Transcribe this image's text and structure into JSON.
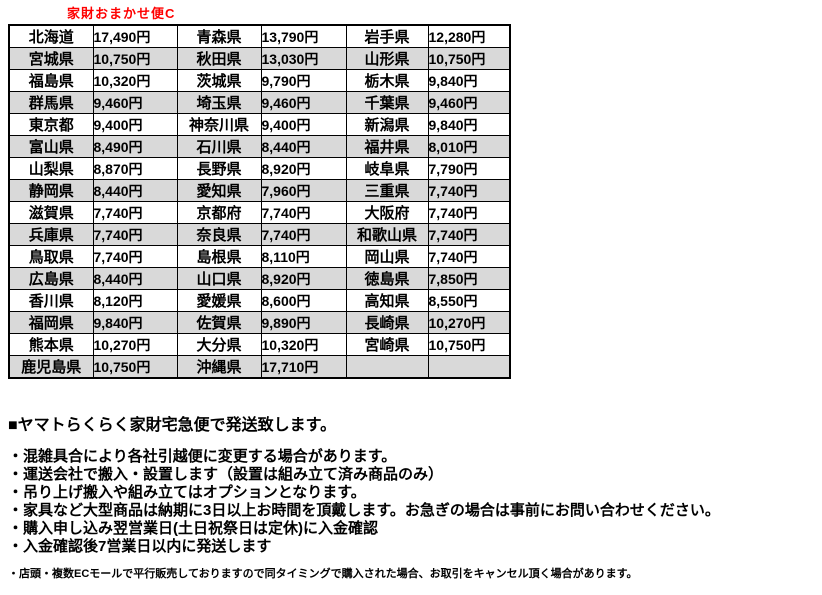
{
  "title": "家財おまかせ便C",
  "colors": {
    "title": "#ff0000",
    "row_alt": "#d9d9d9",
    "border": "#000000"
  },
  "table": {
    "rows": [
      [
        "北海道",
        "17,490円",
        "青森県",
        "13,790円",
        "岩手県",
        "12,280円"
      ],
      [
        "宮城県",
        "10,750円",
        "秋田県",
        "13,030円",
        "山形県",
        "10,750円"
      ],
      [
        "福島県",
        "10,320円",
        "茨城県",
        "9,790円",
        "栃木県",
        "9,840円"
      ],
      [
        "群馬県",
        "9,460円",
        "埼玉県",
        "9,460円",
        "千葉県",
        "9,460円"
      ],
      [
        "東京都",
        "9,400円",
        "神奈川県",
        "9,400円",
        "新潟県",
        "9,840円"
      ],
      [
        "富山県",
        "8,490円",
        "石川県",
        "8,440円",
        "福井県",
        "8,010円"
      ],
      [
        "山梨県",
        "8,870円",
        "長野県",
        "8,920円",
        "岐阜県",
        "7,790円"
      ],
      [
        "静岡県",
        "8,440円",
        "愛知県",
        "7,960円",
        "三重県",
        "7,740円"
      ],
      [
        "滋賀県",
        "7,740円",
        "京都府",
        "7,740円",
        "大阪府",
        "7,740円"
      ],
      [
        "兵庫県",
        "7,740円",
        "奈良県",
        "7,740円",
        "和歌山県",
        "7,740円"
      ],
      [
        "鳥取県",
        "7,740円",
        "島根県",
        "8,110円",
        "岡山県",
        "7,740円"
      ],
      [
        "広島県",
        "8,440円",
        "山口県",
        "8,920円",
        "徳島県",
        "7,850円"
      ],
      [
        "香川県",
        "8,120円",
        "愛媛県",
        "8,600円",
        "高知県",
        "8,550円"
      ],
      [
        "福岡県",
        "9,840円",
        "佐賀県",
        "9,890円",
        "長崎県",
        "10,270円"
      ],
      [
        "熊本県",
        "10,270円",
        "大分県",
        "10,320円",
        "宮崎県",
        "10,750円"
      ],
      [
        "鹿児島県",
        "10,750円",
        "沖縄県",
        "17,710円",
        "",
        ""
      ]
    ]
  },
  "notes": {
    "heading": "■ヤマトらくらく家財宅急便で発送致します。",
    "bullets": [
      "・混雑具合により各社引越便に変更する場合があります。",
      "・運送会社で搬入・設置します（設置は組み立て済み商品のみ）",
      "・吊り上げ搬入や組み立てはオプションとなります。",
      "・家具など大型商品は納期に3日以上お時間を頂戴します。お急ぎの場合は事前にお問い合わせください。",
      "・購入申し込み翌営業日(土日祝祭日は定休)に入金確認",
      "・入金確認後7営業日以内に発送します"
    ],
    "small_note": "・店頭・複数ECモールで平行販売しておりますので同タイミングで購入された場合、お取引をキャンセル頂く場合があります。"
  }
}
